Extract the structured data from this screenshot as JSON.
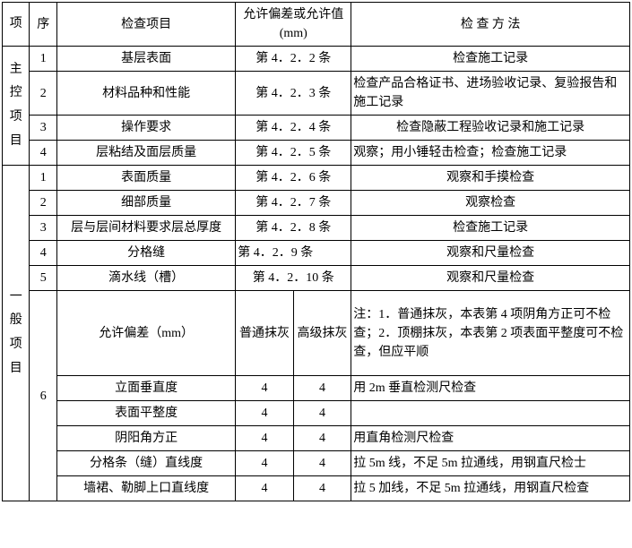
{
  "header": {
    "col1": "项",
    "col2": "序",
    "col3": "检查项目",
    "col4": "允许偏差或允许值(mm)",
    "col5": "检 查 方 法"
  },
  "group1": {
    "label": "主控项目",
    "rows": [
      {
        "seq": "1",
        "item": "基层表面",
        "tol": "第 4．2．2 条",
        "meth": "检查施工记录"
      },
      {
        "seq": "2",
        "item": "材料品种和性能",
        "tol": "第 4．2．3 条",
        "meth": "检查产品合格证书、进场验收记录、复验报告和施工记录"
      },
      {
        "seq": "3",
        "item": "操作要求",
        "tol": "第 4．2．4 条",
        "meth": "检查隐蔽工程验收记录和施工记录"
      },
      {
        "seq": "4",
        "item": "层粘结及面层质量",
        "tol": "第 4．2．5 条",
        "meth": "观察；用小锤轻击检查；检查施工记录"
      }
    ]
  },
  "group2": {
    "label": "一般项目",
    "rows": [
      {
        "seq": "1",
        "item": "表面质量",
        "tol": "第 4．2．6 条",
        "meth": "观察和手摸检查"
      },
      {
        "seq": "2",
        "item": "细部质量",
        "tol": "第 4．2．7 条",
        "meth": "观察检查"
      },
      {
        "seq": "3",
        "item": "层与层间材料要求层总厚度",
        "tol": "第 4．2．8 条",
        "meth": "检查施工记录"
      },
      {
        "seq": "4",
        "item": "分格缝",
        "tol": "第 4．2．9 条",
        "meth": "观察和尺量检查"
      },
      {
        "seq": "5",
        "item": "滴水线（槽）",
        "tol": "第 4．2．10 条",
        "meth": "观察和尺量检查"
      }
    ],
    "sub": {
      "seq": "6",
      "header_item": "允许偏差（mm）",
      "header_tol1": "普通抹灰",
      "header_tol2": "高级抹灰",
      "note": "注：1．普通抹灰，本表第 4 项阴角方正可不检查；2．顶棚抹灰，本表第 2 项表面平整度可不检查，但应平顺",
      "rows": [
        {
          "item": "立面垂直度",
          "a": "4",
          "b": "4",
          "meth": "用 2m 垂直检测尺检查"
        },
        {
          "item": "表面平整度",
          "a": "4",
          "b": "4",
          "meth": ""
        },
        {
          "item": "阴阳角方正",
          "a": "4",
          "b": "4",
          "meth": "用直角检测尺检查"
        },
        {
          "item": "分格条（缝）直线度",
          "a": "4",
          "b": "4",
          "meth": "拉 5m 线，不足 5m 拉通线，用钢直尺检士"
        },
        {
          "item": "墙裙、勒脚上口直线度",
          "a": "4",
          "b": "4",
          "meth": "拉 5 加线，不足 5m 拉通线，用钢直尺检查"
        }
      ]
    }
  }
}
